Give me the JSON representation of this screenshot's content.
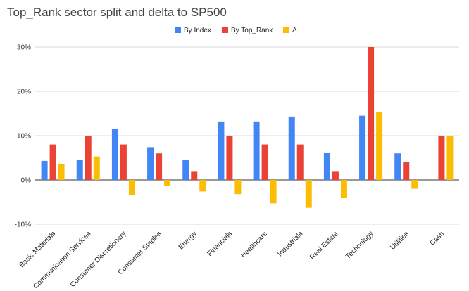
{
  "chart_data": {
    "type": "bar",
    "title": "Top_Rank sector split and delta to SP500",
    "xlabel": "",
    "ylabel": "",
    "ylim": [
      -10,
      30
    ],
    "yticks": [
      {
        "value": 30,
        "label": "30%"
      },
      {
        "value": 20,
        "label": "20%"
      },
      {
        "value": 10,
        "label": "10%"
      },
      {
        "value": 0,
        "label": "0%"
      },
      {
        "value": -10,
        "label": "-10%"
      }
    ],
    "grid": true,
    "legend_position": "top",
    "categories": [
      "Basic Materials",
      "Communication Services",
      "Consumer Discretionary",
      "Consumer Staples",
      "Energy",
      "Financials",
      "Healthcare",
      "Industrials",
      "Real Estate",
      "Technology",
      "Utilities",
      "Cash"
    ],
    "series": [
      {
        "name": "By Index",
        "color": "#4285f4",
        "values": [
          4.3,
          4.6,
          11.5,
          7.4,
          4.6,
          13.2,
          13.2,
          14.3,
          6.1,
          14.5,
          6.0,
          0
        ]
      },
      {
        "name": "By Top_Rank",
        "color": "#ea4335",
        "values": [
          8.0,
          10.0,
          8.0,
          6.0,
          2.0,
          10.0,
          8.0,
          8.0,
          2.0,
          30.0,
          4.0,
          10.0
        ]
      },
      {
        "name": "Δ",
        "color": "#fbbc04",
        "values": [
          3.6,
          5.3,
          -3.5,
          -1.4,
          -2.6,
          -3.2,
          -5.3,
          -6.3,
          -4.1,
          15.4,
          -2.0,
          10.0
        ]
      }
    ]
  }
}
